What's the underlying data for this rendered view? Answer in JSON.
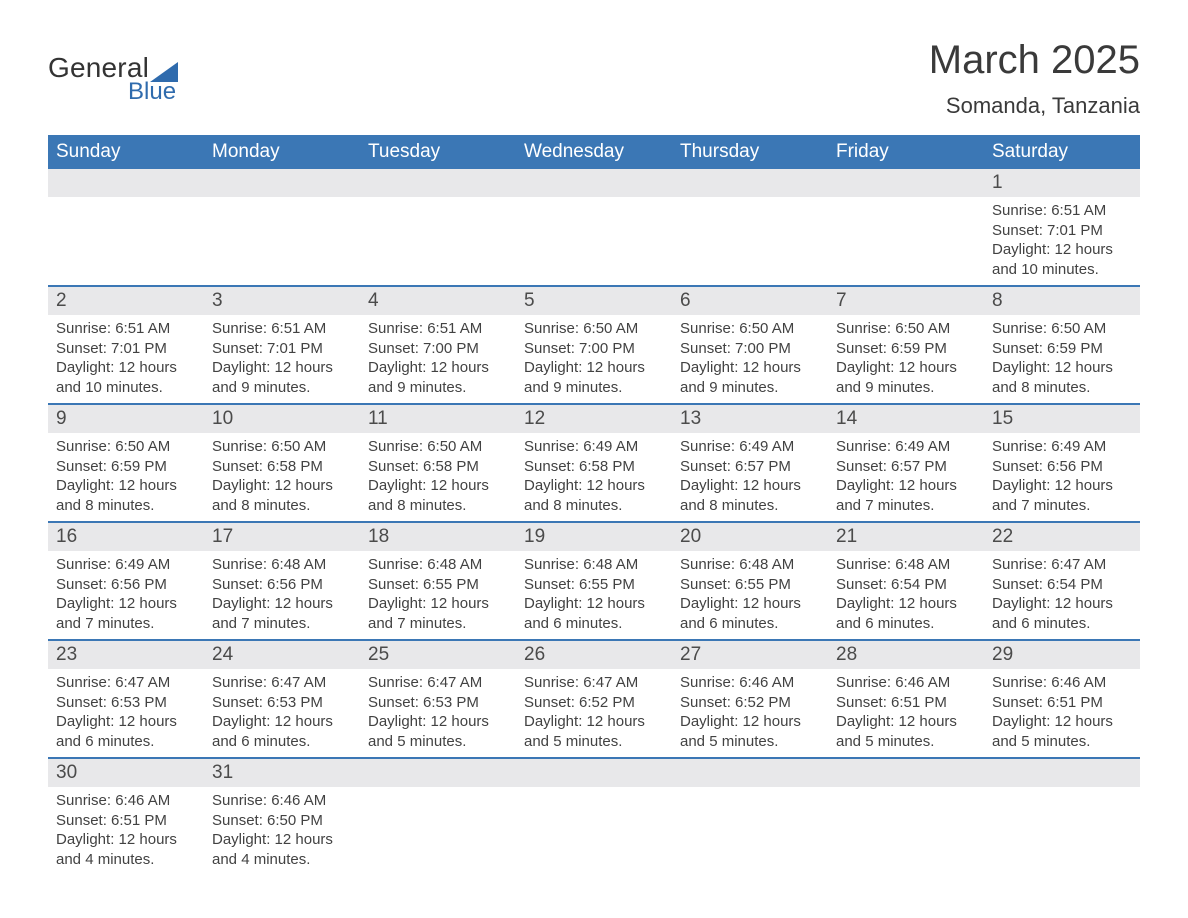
{
  "brand": {
    "line1": "General",
    "line2": "Blue"
  },
  "header": {
    "title": "March 2025",
    "location": "Somanda, Tanzania"
  },
  "colors": {
    "header_bg": "#3b77b5",
    "header_text": "#ffffff",
    "daynum_bg": "#e8e8ea",
    "row_divider": "#3b77b5",
    "brand_blue": "#2f6bad",
    "body_text": "#424242",
    "background": "#ffffff"
  },
  "typography": {
    "title_fontsize": 40,
    "subtitle_fontsize": 22,
    "header_row_fontsize": 19,
    "daynum_fontsize": 19,
    "body_fontsize": 15,
    "font_family": "Arial"
  },
  "columns": [
    "Sunday",
    "Monday",
    "Tuesday",
    "Wednesday",
    "Thursday",
    "Friday",
    "Saturday"
  ],
  "weeks": [
    [
      {
        "day": "",
        "sunrise": "",
        "sunset": "",
        "daylight": ""
      },
      {
        "day": "",
        "sunrise": "",
        "sunset": "",
        "daylight": ""
      },
      {
        "day": "",
        "sunrise": "",
        "sunset": "",
        "daylight": ""
      },
      {
        "day": "",
        "sunrise": "",
        "sunset": "",
        "daylight": ""
      },
      {
        "day": "",
        "sunrise": "",
        "sunset": "",
        "daylight": ""
      },
      {
        "day": "",
        "sunrise": "",
        "sunset": "",
        "daylight": ""
      },
      {
        "day": "1",
        "sunrise": "Sunrise: 6:51 AM",
        "sunset": "Sunset: 7:01 PM",
        "daylight": "Daylight: 12 hours and 10 minutes."
      }
    ],
    [
      {
        "day": "2",
        "sunrise": "Sunrise: 6:51 AM",
        "sunset": "Sunset: 7:01 PM",
        "daylight": "Daylight: 12 hours and 10 minutes."
      },
      {
        "day": "3",
        "sunrise": "Sunrise: 6:51 AM",
        "sunset": "Sunset: 7:01 PM",
        "daylight": "Daylight: 12 hours and 9 minutes."
      },
      {
        "day": "4",
        "sunrise": "Sunrise: 6:51 AM",
        "sunset": "Sunset: 7:00 PM",
        "daylight": "Daylight: 12 hours and 9 minutes."
      },
      {
        "day": "5",
        "sunrise": "Sunrise: 6:50 AM",
        "sunset": "Sunset: 7:00 PM",
        "daylight": "Daylight: 12 hours and 9 minutes."
      },
      {
        "day": "6",
        "sunrise": "Sunrise: 6:50 AM",
        "sunset": "Sunset: 7:00 PM",
        "daylight": "Daylight: 12 hours and 9 minutes."
      },
      {
        "day": "7",
        "sunrise": "Sunrise: 6:50 AM",
        "sunset": "Sunset: 6:59 PM",
        "daylight": "Daylight: 12 hours and 9 minutes."
      },
      {
        "day": "8",
        "sunrise": "Sunrise: 6:50 AM",
        "sunset": "Sunset: 6:59 PM",
        "daylight": "Daylight: 12 hours and 8 minutes."
      }
    ],
    [
      {
        "day": "9",
        "sunrise": "Sunrise: 6:50 AM",
        "sunset": "Sunset: 6:59 PM",
        "daylight": "Daylight: 12 hours and 8 minutes."
      },
      {
        "day": "10",
        "sunrise": "Sunrise: 6:50 AM",
        "sunset": "Sunset: 6:58 PM",
        "daylight": "Daylight: 12 hours and 8 minutes."
      },
      {
        "day": "11",
        "sunrise": "Sunrise: 6:50 AM",
        "sunset": "Sunset: 6:58 PM",
        "daylight": "Daylight: 12 hours and 8 minutes."
      },
      {
        "day": "12",
        "sunrise": "Sunrise: 6:49 AM",
        "sunset": "Sunset: 6:58 PM",
        "daylight": "Daylight: 12 hours and 8 minutes."
      },
      {
        "day": "13",
        "sunrise": "Sunrise: 6:49 AM",
        "sunset": "Sunset: 6:57 PM",
        "daylight": "Daylight: 12 hours and 8 minutes."
      },
      {
        "day": "14",
        "sunrise": "Sunrise: 6:49 AM",
        "sunset": "Sunset: 6:57 PM",
        "daylight": "Daylight: 12 hours and 7 minutes."
      },
      {
        "day": "15",
        "sunrise": "Sunrise: 6:49 AM",
        "sunset": "Sunset: 6:56 PM",
        "daylight": "Daylight: 12 hours and 7 minutes."
      }
    ],
    [
      {
        "day": "16",
        "sunrise": "Sunrise: 6:49 AM",
        "sunset": "Sunset: 6:56 PM",
        "daylight": "Daylight: 12 hours and 7 minutes."
      },
      {
        "day": "17",
        "sunrise": "Sunrise: 6:48 AM",
        "sunset": "Sunset: 6:56 PM",
        "daylight": "Daylight: 12 hours and 7 minutes."
      },
      {
        "day": "18",
        "sunrise": "Sunrise: 6:48 AM",
        "sunset": "Sunset: 6:55 PM",
        "daylight": "Daylight: 12 hours and 7 minutes."
      },
      {
        "day": "19",
        "sunrise": "Sunrise: 6:48 AM",
        "sunset": "Sunset: 6:55 PM",
        "daylight": "Daylight: 12 hours and 6 minutes."
      },
      {
        "day": "20",
        "sunrise": "Sunrise: 6:48 AM",
        "sunset": "Sunset: 6:55 PM",
        "daylight": "Daylight: 12 hours and 6 minutes."
      },
      {
        "day": "21",
        "sunrise": "Sunrise: 6:48 AM",
        "sunset": "Sunset: 6:54 PM",
        "daylight": "Daylight: 12 hours and 6 minutes."
      },
      {
        "day": "22",
        "sunrise": "Sunrise: 6:47 AM",
        "sunset": "Sunset: 6:54 PM",
        "daylight": "Daylight: 12 hours and 6 minutes."
      }
    ],
    [
      {
        "day": "23",
        "sunrise": "Sunrise: 6:47 AM",
        "sunset": "Sunset: 6:53 PM",
        "daylight": "Daylight: 12 hours and 6 minutes."
      },
      {
        "day": "24",
        "sunrise": "Sunrise: 6:47 AM",
        "sunset": "Sunset: 6:53 PM",
        "daylight": "Daylight: 12 hours and 6 minutes."
      },
      {
        "day": "25",
        "sunrise": "Sunrise: 6:47 AM",
        "sunset": "Sunset: 6:53 PM",
        "daylight": "Daylight: 12 hours and 5 minutes."
      },
      {
        "day": "26",
        "sunrise": "Sunrise: 6:47 AM",
        "sunset": "Sunset: 6:52 PM",
        "daylight": "Daylight: 12 hours and 5 minutes."
      },
      {
        "day": "27",
        "sunrise": "Sunrise: 6:46 AM",
        "sunset": "Sunset: 6:52 PM",
        "daylight": "Daylight: 12 hours and 5 minutes."
      },
      {
        "day": "28",
        "sunrise": "Sunrise: 6:46 AM",
        "sunset": "Sunset: 6:51 PM",
        "daylight": "Daylight: 12 hours and 5 minutes."
      },
      {
        "day": "29",
        "sunrise": "Sunrise: 6:46 AM",
        "sunset": "Sunset: 6:51 PM",
        "daylight": "Daylight: 12 hours and 5 minutes."
      }
    ],
    [
      {
        "day": "30",
        "sunrise": "Sunrise: 6:46 AM",
        "sunset": "Sunset: 6:51 PM",
        "daylight": "Daylight: 12 hours and 4 minutes."
      },
      {
        "day": "31",
        "sunrise": "Sunrise: 6:46 AM",
        "sunset": "Sunset: 6:50 PM",
        "daylight": "Daylight: 12 hours and 4 minutes."
      },
      {
        "day": "",
        "sunrise": "",
        "sunset": "",
        "daylight": ""
      },
      {
        "day": "",
        "sunrise": "",
        "sunset": "",
        "daylight": ""
      },
      {
        "day": "",
        "sunrise": "",
        "sunset": "",
        "daylight": ""
      },
      {
        "day": "",
        "sunrise": "",
        "sunset": "",
        "daylight": ""
      },
      {
        "day": "",
        "sunrise": "",
        "sunset": "",
        "daylight": ""
      }
    ]
  ]
}
